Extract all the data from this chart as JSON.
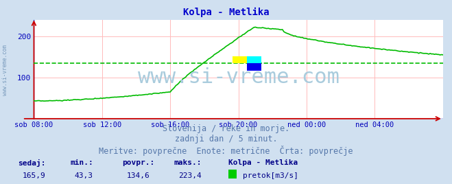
{
  "title": "Kolpa - Metlika",
  "title_color": "#0000cc",
  "bg_color": "#d0e0f0",
  "plot_bg_color": "#ffffff",
  "grid_color": "#ffbbbb",
  "axis_color": "#0000bb",
  "line_color": "#00bb00",
  "avg_line_color": "#00bb00",
  "avg_value": 134.6,
  "y_min": 0,
  "y_max": 240,
  "y_ticks": [
    100,
    200
  ],
  "x_labels": [
    "sob 08:00",
    "sob 12:00",
    "sob 16:00",
    "sob 20:00",
    "ned 00:00",
    "ned 04:00"
  ],
  "x_tick_indices": [
    0,
    48,
    96,
    144,
    192,
    240
  ],
  "total_points": 289,
  "watermark": "www.si-vreme.com",
  "watermark_color": "#aaccdd",
  "watermark_fontsize": 22,
  "subtitle_lines": [
    "Slovenija / reke in morje.",
    "zadnji dan / 5 minut.",
    "Meritve: povprečne  Enote: metrične  Črta: povprečje"
  ],
  "subtitle_color": "#5577aa",
  "subtitle_fontsize": 8.5,
  "stats_labels": [
    "sedaj:",
    "min.:",
    "povpr.:",
    "maks.:"
  ],
  "stats_values": [
    "165,9",
    "43,3",
    "134,6",
    "223,4"
  ],
  "stats_color": "#000088",
  "legend_label": "pretok[m3/s]",
  "legend_color": "#00cc00",
  "station_label": "Kolpa - Metlika",
  "left_label": "www.si-vreme.com",
  "left_label_color": "#7799bb",
  "highlight_x": 150,
  "highlight_yellow": "#ffff00",
  "highlight_cyan": "#00ffff",
  "highlight_blue": "#0000ee",
  "arrow_color": "#cc0000"
}
